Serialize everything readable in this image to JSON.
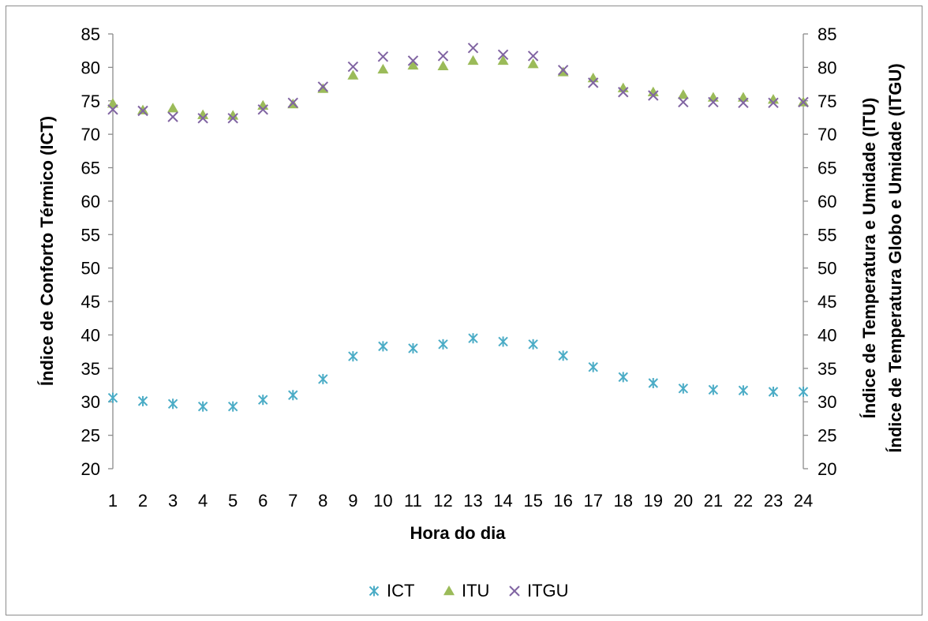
{
  "chart_data": {
    "type": "scatter",
    "x": [
      1,
      2,
      3,
      4,
      5,
      6,
      7,
      8,
      9,
      10,
      11,
      12,
      13,
      14,
      15,
      16,
      17,
      18,
      19,
      20,
      21,
      22,
      23,
      24
    ],
    "series": [
      {
        "name": "ICT",
        "axis": "left",
        "marker": "asterisk",
        "color": "#4bacc6",
        "values": [
          30.6,
          30.1,
          29.7,
          29.3,
          29.3,
          30.3,
          31.0,
          33.4,
          36.8,
          38.3,
          38.0,
          38.6,
          39.5,
          39.0,
          38.6,
          36.9,
          35.2,
          33.7,
          32.8,
          32.0,
          31.8,
          31.7,
          31.5,
          31.5
        ]
      },
      {
        "name": "ITU",
        "axis": "right",
        "marker": "triangle",
        "color": "#9bbb59",
        "values": [
          74.6,
          73.6,
          73.9,
          72.9,
          72.8,
          74.3,
          74.5,
          76.8,
          78.8,
          79.7,
          80.3,
          80.2,
          81.0,
          81.0,
          80.5,
          79.3,
          78.4,
          76.9,
          76.3,
          75.9,
          75.5,
          75.5,
          75.2,
          74.8
        ]
      },
      {
        "name": "ITGU",
        "axis": "right",
        "marker": "x",
        "color": "#8064a2",
        "values": [
          73.7,
          73.5,
          72.6,
          72.4,
          72.4,
          73.7,
          74.7,
          77.1,
          80.1,
          81.6,
          81.0,
          81.7,
          82.9,
          81.9,
          81.7,
          79.6,
          77.7,
          76.3,
          75.8,
          74.8,
          74.8,
          74.7,
          74.7,
          74.8
        ]
      }
    ],
    "xlabel": "Hora do dia",
    "ylabel_left": "Índice de Conforto Térmico (ICT)",
    "ylabel_right": [
      "Índice de Temperatura e Umidade (ITU)",
      "Índice de Temperatura Globo e Umidade (ITGU)"
    ],
    "ylim": [
      20,
      85
    ],
    "yticks": [
      20,
      25,
      30,
      35,
      40,
      45,
      50,
      55,
      60,
      65,
      70,
      75,
      80,
      85
    ],
    "xticks": [
      "1",
      "2",
      "3",
      "4",
      "5",
      "6",
      "7",
      "8",
      "9",
      "10",
      "11",
      "12",
      "13",
      "14",
      "15",
      "16",
      "17",
      "18",
      "19",
      "20",
      "21",
      "22",
      "23",
      "24"
    ],
    "grid": false,
    "legend": "bottom"
  }
}
